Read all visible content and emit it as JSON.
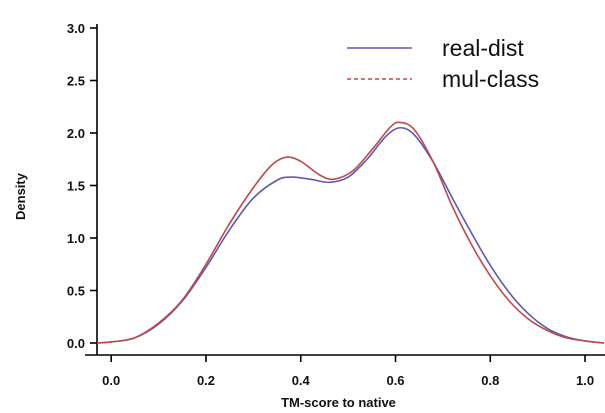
{
  "chart_data": {
    "type": "line",
    "title": "",
    "xlabel": "TM-score to native",
    "ylabel": "Density",
    "xlim": [
      -0.03,
      1.04
    ],
    "ylim": [
      0,
      3.0
    ],
    "x_ticks": [
      0.0,
      0.2,
      0.4,
      0.6,
      0.8,
      1.0
    ],
    "x_tick_labels": [
      "0.0",
      "0.2",
      "0.4",
      "0.6",
      "0.8",
      "1.0"
    ],
    "y_ticks": [
      0.0,
      0.5,
      1.0,
      1.5,
      2.0,
      2.5,
      3.0
    ],
    "y_tick_labels": [
      "0.0",
      "0.5",
      "1.0",
      "1.5",
      "2.0",
      "2.5",
      "3.0"
    ],
    "grid": false,
    "legend_position": "top-right",
    "series": [
      {
        "name": "real-dist",
        "color": "#5b5bb0",
        "dash": "solid",
        "points": [
          [
            -0.03,
            0.0
          ],
          [
            0.0,
            0.01
          ],
          [
            0.05,
            0.05
          ],
          [
            0.1,
            0.18
          ],
          [
            0.15,
            0.4
          ],
          [
            0.2,
            0.72
          ],
          [
            0.25,
            1.08
          ],
          [
            0.3,
            1.38
          ],
          [
            0.35,
            1.55
          ],
          [
            0.38,
            1.58
          ],
          [
            0.42,
            1.56
          ],
          [
            0.46,
            1.53
          ],
          [
            0.5,
            1.58
          ],
          [
            0.54,
            1.75
          ],
          [
            0.58,
            1.97
          ],
          [
            0.61,
            2.05
          ],
          [
            0.64,
            1.98
          ],
          [
            0.68,
            1.72
          ],
          [
            0.72,
            1.38
          ],
          [
            0.76,
            1.05
          ],
          [
            0.8,
            0.74
          ],
          [
            0.84,
            0.48
          ],
          [
            0.88,
            0.28
          ],
          [
            0.92,
            0.14
          ],
          [
            0.96,
            0.06
          ],
          [
            1.0,
            0.02
          ],
          [
            1.04,
            0.0
          ]
        ]
      },
      {
        "name": "mul-class",
        "color": "#c0484c",
        "dash": "dashed",
        "points": [
          [
            -0.03,
            0.0
          ],
          [
            0.0,
            0.01
          ],
          [
            0.05,
            0.05
          ],
          [
            0.1,
            0.19
          ],
          [
            0.15,
            0.41
          ],
          [
            0.2,
            0.75
          ],
          [
            0.25,
            1.14
          ],
          [
            0.3,
            1.48
          ],
          [
            0.34,
            1.7
          ],
          [
            0.37,
            1.77
          ],
          [
            0.4,
            1.73
          ],
          [
            0.44,
            1.6
          ],
          [
            0.47,
            1.56
          ],
          [
            0.51,
            1.64
          ],
          [
            0.55,
            1.84
          ],
          [
            0.59,
            2.06
          ],
          [
            0.61,
            2.1
          ],
          [
            0.64,
            2.03
          ],
          [
            0.68,
            1.72
          ],
          [
            0.72,
            1.3
          ],
          [
            0.76,
            0.94
          ],
          [
            0.8,
            0.64
          ],
          [
            0.84,
            0.4
          ],
          [
            0.88,
            0.23
          ],
          [
            0.92,
            0.12
          ],
          [
            0.96,
            0.05
          ],
          [
            1.0,
            0.02
          ],
          [
            1.04,
            0.0
          ]
        ]
      }
    ]
  }
}
